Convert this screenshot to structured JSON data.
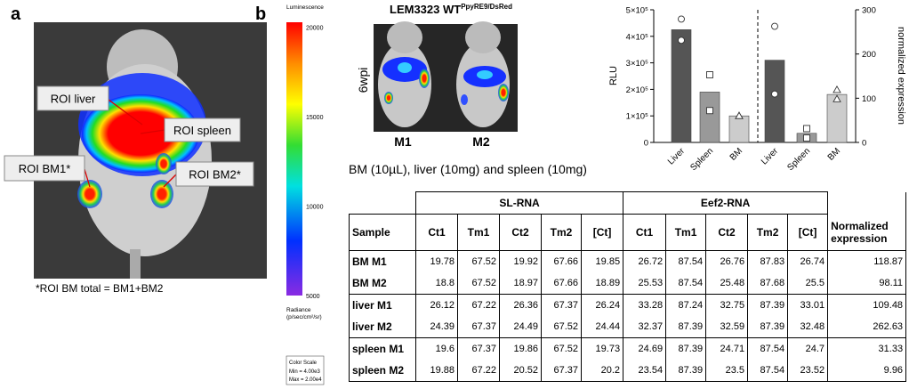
{
  "figure": {
    "panel_a": {
      "label": "a",
      "roi_labels": [
        "ROI liver",
        "ROI spleen",
        "ROI BM1*",
        "ROI BM2*"
      ],
      "footnote": "*ROI BM total = BM1+BM2"
    },
    "panel_b": {
      "label": "b",
      "colorbar": {
        "title": "Luminescence",
        "ticks": [
          20000,
          15000,
          10000,
          5000
        ],
        "unit_label": "Radiance",
        "unit": "(p/sec/cm²/sr)",
        "scale_title": "Color Scale",
        "min": "Min = 4.00e3",
        "max": "Max = 2.00e4"
      },
      "image_title": "LEM3323 WT",
      "image_title_sup": "PpyRE9/DsRed",
      "timepoint": "6wpi",
      "mice": [
        "M1",
        "M2"
      ],
      "caption": "BM (10µL), liver (10mg) and spleen (10mg)"
    }
  },
  "table": {
    "groups": [
      "SL-RNA",
      "Eef2-RNA"
    ],
    "header": [
      "Sample",
      "Ct1",
      "Tm1",
      "Ct2",
      "Tm2",
      "[Ct]",
      "Ct1",
      "Tm1",
      "Ct2",
      "Tm2",
      "[Ct]",
      "Normalized expression"
    ],
    "rows": [
      [
        "BM M1",
        "19.78",
        "67.52",
        "19.92",
        "67.66",
        "19.85",
        "26.72",
        "87.54",
        "26.76",
        "87.83",
        "26.74",
        "118.87"
      ],
      [
        "BM M2",
        "18.8",
        "67.52",
        "18.97",
        "67.66",
        "18.89",
        "25.53",
        "87.54",
        "25.48",
        "87.68",
        "25.5",
        "98.11"
      ],
      [
        "liver M1",
        "26.12",
        "67.22",
        "26.36",
        "67.37",
        "26.24",
        "33.28",
        "87.24",
        "32.75",
        "87.39",
        "33.01",
        "109.48"
      ],
      [
        "liver M2",
        "24.39",
        "67.37",
        "24.49",
        "67.52",
        "24.44",
        "32.37",
        "87.39",
        "32.59",
        "87.39",
        "32.48",
        "262.63"
      ],
      [
        "spleen M1",
        "19.6",
        "67.37",
        "19.86",
        "67.52",
        "19.73",
        "24.69",
        "87.39",
        "24.71",
        "87.54",
        "24.7",
        "31.33"
      ],
      [
        "spleen M2",
        "19.88",
        "67.22",
        "20.52",
        "67.37",
        "20.2",
        "23.54",
        "87.39",
        "23.5",
        "87.54",
        "23.52",
        "9.96"
      ]
    ]
  },
  "chart_data": {
    "type": "bar",
    "categories": [
      "Liver",
      "Spleen",
      "BM",
      "Liver",
      "Spleen",
      "BM"
    ],
    "ylabel": "RLU",
    "y2label": "normalized expression",
    "ylim": [
      0,
      500000
    ],
    "yticks": [
      0,
      {
        "value": 100000,
        "label": "1×10⁵"
      },
      {
        "value": 200000,
        "label": "2×10⁵"
      },
      {
        "value": 300000,
        "label": "3×10⁵"
      },
      {
        "value": 400000,
        "label": "4×10⁵"
      },
      {
        "value": 500000,
        "label": "5×10⁵"
      }
    ],
    "y2lim": [
      0,
      300
    ],
    "y2ticks": [
      0,
      100,
      200,
      300
    ],
    "markers": [
      "circle",
      "square",
      "triangle",
      "circle",
      "square",
      "triangle"
    ],
    "series": [
      {
        "type": "bar",
        "colors": [
          "#555555",
          "#999999",
          "#cccccc",
          "#555555",
          "#999999",
          "#cccccc"
        ],
        "values": [
          425000,
          190000,
          100000,
          null,
          null,
          null
        ]
      },
      {
        "type": "bar",
        "axis": "y2",
        "colors": [
          "#555555",
          "#999999",
          "#cccccc",
          "#555555",
          "#999999",
          "#cccccc"
        ],
        "values": [
          null,
          null,
          null,
          186,
          20.6,
          108.5
        ]
      },
      {
        "type": "scatter",
        "values": [
          465000,
          255000,
          100000,
          null,
          null,
          null
        ]
      },
      {
        "type": "scatter",
        "values": [
          385000,
          120000,
          100000,
          null,
          null,
          null
        ]
      },
      {
        "type": "scatter",
        "axis": "y2",
        "values": [
          null,
          null,
          null,
          109.48,
          31.33,
          118.87
        ]
      },
      {
        "type": "scatter",
        "axis": "y2",
        "values": [
          null,
          null,
          null,
          262.63,
          9.96,
          98.11
        ]
      }
    ]
  }
}
